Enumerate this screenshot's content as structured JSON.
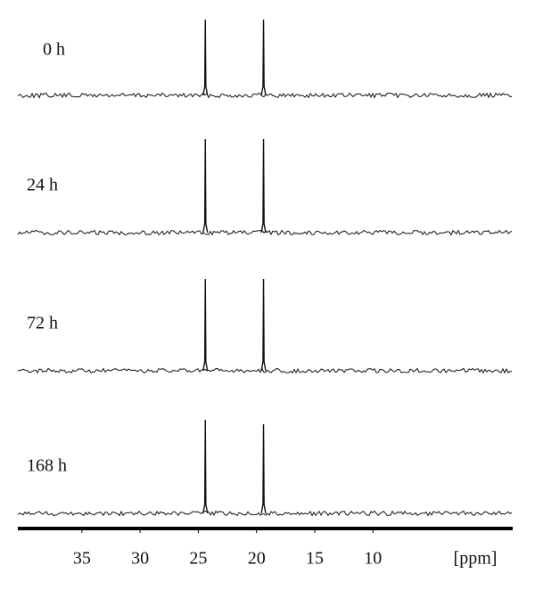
{
  "chart_data": {
    "type": "spectrum",
    "x_label": "[ppm]",
    "xlim": [
      40.5,
      -2
    ],
    "xticks": [
      35,
      30,
      25,
      20,
      15,
      10
    ],
    "ylim": [
      0,
      1.1
    ],
    "color": "#111111",
    "series": [
      {
        "name": "0 h",
        "x": [
          24.4,
          19.4
        ],
        "values": [
          0.85,
          0.85
        ]
      },
      {
        "name": "24 h",
        "x": [
          24.4,
          19.4
        ],
        "values": [
          1.05,
          1.05
        ]
      },
      {
        "name": "72 h",
        "x": [
          24.4,
          19.4
        ],
        "values": [
          1.03,
          1.03
        ]
      },
      {
        "name": "168 h",
        "x": [
          24.4,
          19.4
        ],
        "values": [
          1.05,
          1.0
        ]
      }
    ]
  }
}
